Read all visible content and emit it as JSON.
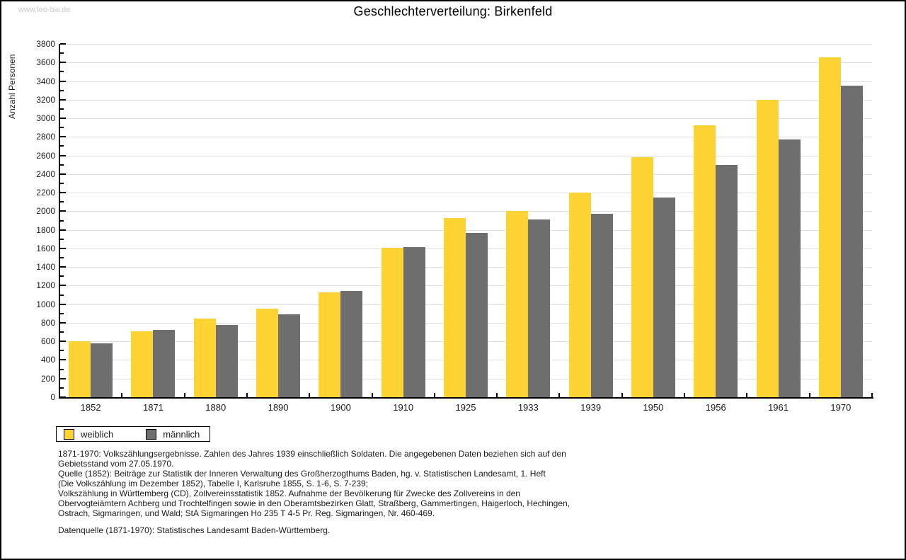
{
  "watermark": "www.leo-bw.de",
  "title": "Geschlechterverteilung: Birkenfeld",
  "chart_data": {
    "type": "bar",
    "title": "Geschlechterverteilung: Birkenfeld",
    "xlabel": "",
    "ylabel": "Anzahl Personen",
    "ylim": [
      0,
      3800
    ],
    "ytick_major": 200,
    "ytick_minor": 100,
    "ytick_labels": [
      "0",
      "200",
      "400",
      "600",
      "800",
      "1000",
      "1200",
      "1400",
      "1600",
      "1800",
      "2000",
      "2200",
      "2400",
      "2600",
      "2800",
      "3000",
      "3200",
      "3400",
      "3600",
      "3800"
    ],
    "grid": true,
    "legend_position": "bottom-left",
    "categories": [
      "1852",
      "1871",
      "1880",
      "1890",
      "1900",
      "1910",
      "1925",
      "1933",
      "1939",
      "1950",
      "1956",
      "1961",
      "1970"
    ],
    "series": [
      {
        "name": "weiblich",
        "color": "#fcd332",
        "values": [
          600,
          710,
          845,
          950,
          1125,
          1610,
          1925,
          2000,
          2200,
          2580,
          2925,
          3200,
          3655
        ]
      },
      {
        "name": "männlich",
        "color": "#6e6e6e",
        "values": [
          580,
          725,
          780,
          890,
          1140,
          1615,
          1765,
          1910,
          1970,
          2150,
          2500,
          2770,
          3350
        ]
      }
    ]
  },
  "colors": {
    "grid": "#dedede",
    "axis": "#000000",
    "watermark": "#c9c9c9",
    "female": "#fcd332",
    "male": "#6e6e6e"
  },
  "notes": {
    "lines": [
      "1871-1970: Volkszählungsergebnisse. Zahlen des Jahres 1939 einschließlich Soldaten. Die angegebenen Daten beziehen sich auf den",
      "Gebietsstand vom 27.05.1970.",
      "Quelle (1852): Beiträge zur Statistik der Inneren Verwaltung des Großherzogthums Baden, hg. v. Statistischen Landesamt, 1. Heft",
      "(Die Volkszählung im Dezember 1852), Tabelle I, Karlsruhe 1855, S. 1-6, S. 7-239;",
      "Volkszählung in Württemberg (CD), Zollvereinsstatistik 1852. Aufnahme der Bevölkerung für Zwecke des Zollvereins in den",
      "Obervogteiämtern Achberg und Trochtelfingen sowie in den Oberamtsbezirken Glatt, Straßberg, Gammertingen, Haigerloch, Hechingen,",
      "Ostrach, Sigmaringen, und Wald; StA Sigmaringen Ho 235 T 4-5 Pr. Reg. Sigmaringen, Nr. 460-469."
    ],
    "source": "Datenquelle (1871-1970): Statistisches Landesamt Baden-Württemberg."
  }
}
